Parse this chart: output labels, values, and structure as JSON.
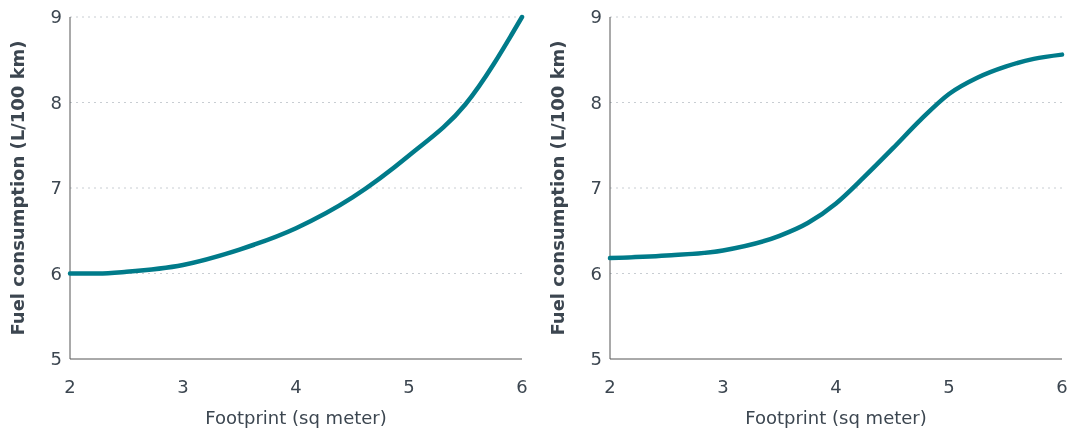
{
  "chart_data": [
    {
      "type": "line",
      "xlabel": "Footprint (sq meter)",
      "ylabel": "Fuel consumption (L/100 km)",
      "x": [
        2,
        2.25,
        2.5,
        3,
        3.5,
        4,
        4.5,
        5,
        5.5,
        6
      ],
      "series": [
        {
          "color": "#007b8a",
          "values": [
            6.0,
            6.0,
            6.02,
            6.1,
            6.28,
            6.53,
            6.89,
            7.38,
            7.98,
            9.0
          ]
        }
      ],
      "xlim": [
        2,
        6
      ],
      "xticks": [
        2,
        3,
        4,
        5,
        6
      ],
      "ylim": [
        5,
        9
      ],
      "yticks": [
        5,
        6,
        7,
        8,
        9
      ],
      "grid": "y",
      "marker": "none",
      "line_style": "solid"
    },
    {
      "type": "line",
      "xlabel": "Footprint (sq meter)",
      "ylabel": "Fuel consumption (L/100 km)",
      "x": [
        2,
        2.5,
        3,
        3.5,
        3.75,
        4,
        4.25,
        4.5,
        4.75,
        5,
        5.25,
        5.5,
        5.75,
        6
      ],
      "series": [
        {
          "color": "#007b8a",
          "values": [
            6.18,
            6.21,
            6.27,
            6.44,
            6.59,
            6.82,
            7.13,
            7.46,
            7.8,
            8.1,
            8.29,
            8.42,
            8.51,
            8.56
          ]
        }
      ],
      "xlim": [
        2,
        6
      ],
      "xticks": [
        2,
        3,
        4,
        5,
        6
      ],
      "ylim": [
        5,
        9
      ],
      "yticks": [
        5,
        6,
        7,
        8,
        9
      ],
      "grid": "y",
      "marker": "none",
      "line_style": "solid"
    }
  ]
}
